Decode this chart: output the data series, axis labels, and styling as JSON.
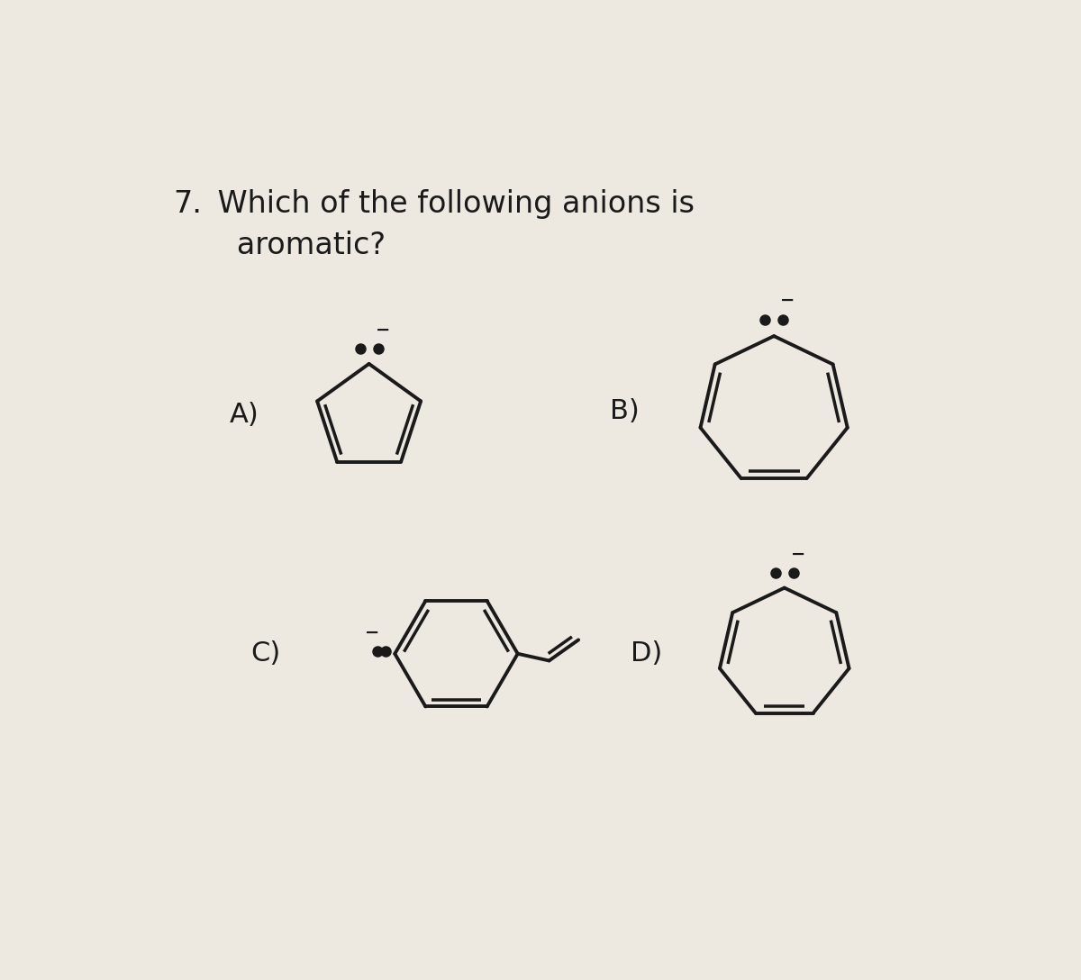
{
  "title_num": "7.",
  "title_text": " Which of the following anions is\n   aromatic?",
  "bg_color": "#ede9e1",
  "text_color": "#1a1a1a",
  "label_A": "A)",
  "label_B": "B)",
  "label_C": "C)",
  "label_D": "D)",
  "lw": 2.8,
  "dot_size": 8
}
